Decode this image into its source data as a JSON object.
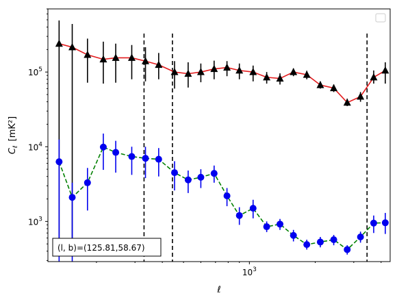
{
  "chart_data": {
    "type": "scatter",
    "xscale": "log",
    "yscale": "log",
    "xlim": [
      120,
      4400
    ],
    "ylim": [
      290,
      700000
    ],
    "xlabel": "ℓ",
    "ylabel_main": "C",
    "ylabel_sub": "ℓ",
    "ylabel_unit": "[mK²]",
    "x_tick_labels": [
      {
        "value": 1000,
        "base": "10",
        "exp": "3"
      }
    ],
    "y_tick_labels": [
      {
        "value": 1000,
        "base": "10",
        "exp": "3"
      },
      {
        "value": 10000,
        "base": "10",
        "exp": "4"
      },
      {
        "value": 100000,
        "base": "10",
        "exp": "5"
      }
    ],
    "vlines": [
      330,
      445,
      3450
    ],
    "annotation": "(l, b)=(125.81,58.67)",
    "legend_entries": [],
    "series": [
      {
        "marker": "triangle",
        "marker_color": "#000000",
        "line_color": "#e31a1c",
        "line_style": "solid",
        "points": [
          {
            "x": 135,
            "y": 240000,
            "lo": 600,
            "hi": 490000
          },
          {
            "x": 155,
            "y": 215000,
            "lo": 600,
            "hi": 440000
          },
          {
            "x": 182,
            "y": 170000,
            "lo": 72000,
            "hi": 280000
          },
          {
            "x": 215,
            "y": 148000,
            "lo": 70000,
            "hi": 255000
          },
          {
            "x": 245,
            "y": 155000,
            "lo": 72000,
            "hi": 240000
          },
          {
            "x": 290,
            "y": 155000,
            "lo": 80000,
            "hi": 230000
          },
          {
            "x": 335,
            "y": 140000,
            "lo": 75000,
            "hi": 215000
          },
          {
            "x": 385,
            "y": 125000,
            "lo": 80000,
            "hi": 180000
          },
          {
            "x": 455,
            "y": 100000,
            "lo": 60000,
            "hi": 140000
          },
          {
            "x": 525,
            "y": 95000,
            "lo": 62000,
            "hi": 135000
          },
          {
            "x": 600,
            "y": 100000,
            "lo": 73000,
            "hi": 130000
          },
          {
            "x": 690,
            "y": 110000,
            "lo": 80000,
            "hi": 142000
          },
          {
            "x": 790,
            "y": 115000,
            "lo": 88000,
            "hi": 140000
          },
          {
            "x": 900,
            "y": 105000,
            "lo": 80000,
            "hi": 130000
          },
          {
            "x": 1040,
            "y": 100000,
            "lo": 75000,
            "hi": 122000
          },
          {
            "x": 1200,
            "y": 85000,
            "lo": 70000,
            "hi": 100000
          },
          {
            "x": 1380,
            "y": 82000,
            "lo": 68000,
            "hi": 96000
          },
          {
            "x": 1590,
            "y": 100000,
            "lo": 88000,
            "hi": 112000
          },
          {
            "x": 1830,
            "y": 92000,
            "lo": 80000,
            "hi": 104000
          },
          {
            "x": 2110,
            "y": 67000,
            "lo": 60000,
            "hi": 75000
          },
          {
            "x": 2430,
            "y": 61000,
            "lo": 54000,
            "hi": 68000
          },
          {
            "x": 2800,
            "y": 39000,
            "lo": 35000,
            "hi": 44000
          },
          {
            "x": 3220,
            "y": 47000,
            "lo": 40000,
            "hi": 54000
          },
          {
            "x": 3700,
            "y": 85000,
            "lo": 70000,
            "hi": 105000
          },
          {
            "x": 4180,
            "y": 105000,
            "lo": 70000,
            "hi": 135000
          }
        ]
      },
      {
        "marker": "circle",
        "marker_color": "#0000ee",
        "line_color": "#008000",
        "line_style": "dashed",
        "points": [
          {
            "x": 135,
            "y": 6300,
            "lo": 250,
            "hi": 12500
          },
          {
            "x": 155,
            "y": 2100,
            "lo": 250,
            "hi": 3300
          },
          {
            "x": 182,
            "y": 3300,
            "lo": 1400,
            "hi": 5200
          },
          {
            "x": 215,
            "y": 9900,
            "lo": 4900,
            "hi": 15000
          },
          {
            "x": 245,
            "y": 8400,
            "lo": 4500,
            "hi": 12000
          },
          {
            "x": 290,
            "y": 7400,
            "lo": 4200,
            "hi": 10000
          },
          {
            "x": 335,
            "y": 7000,
            "lo": 3800,
            "hi": 10000
          },
          {
            "x": 385,
            "y": 6800,
            "lo": 4000,
            "hi": 9600
          },
          {
            "x": 455,
            "y": 4500,
            "lo": 2600,
            "hi": 6400
          },
          {
            "x": 525,
            "y": 3600,
            "lo": 2400,
            "hi": 4800
          },
          {
            "x": 600,
            "y": 3900,
            "lo": 2800,
            "hi": 5000
          },
          {
            "x": 690,
            "y": 4400,
            "lo": 3300,
            "hi": 5600
          },
          {
            "x": 790,
            "y": 2200,
            "lo": 1600,
            "hi": 2800
          },
          {
            "x": 900,
            "y": 1200,
            "lo": 900,
            "hi": 1550
          },
          {
            "x": 1040,
            "y": 1500,
            "lo": 1100,
            "hi": 1950
          },
          {
            "x": 1200,
            "y": 850,
            "lo": 720,
            "hi": 1000
          },
          {
            "x": 1380,
            "y": 920,
            "lo": 770,
            "hi": 1080
          },
          {
            "x": 1590,
            "y": 650,
            "lo": 540,
            "hi": 770
          },
          {
            "x": 1830,
            "y": 490,
            "lo": 420,
            "hi": 570
          },
          {
            "x": 2110,
            "y": 530,
            "lo": 450,
            "hi": 620
          },
          {
            "x": 2430,
            "y": 570,
            "lo": 480,
            "hi": 660
          },
          {
            "x": 2800,
            "y": 420,
            "lo": 360,
            "hi": 480
          },
          {
            "x": 3220,
            "y": 620,
            "lo": 520,
            "hi": 730
          },
          {
            "x": 3700,
            "y": 950,
            "lo": 700,
            "hi": 1200
          },
          {
            "x": 4180,
            "y": 960,
            "lo": 680,
            "hi": 1300
          }
        ]
      }
    ]
  }
}
